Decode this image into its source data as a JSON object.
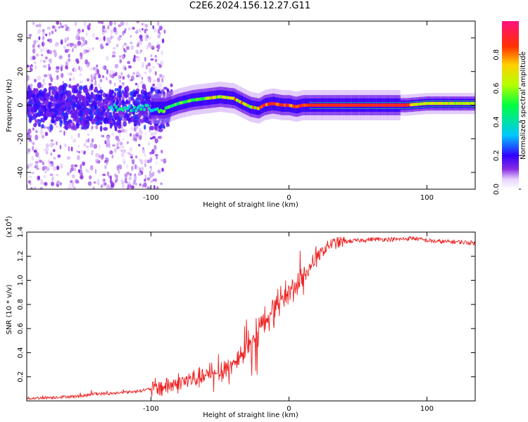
{
  "title": "C2E6.2024.156.12.27.G11",
  "chart_data": [
    {
      "type": "heatmap",
      "name": "spectrogram",
      "xlabel": "Height of straight line (km)",
      "ylabel": "Frequency (Hz)",
      "xlim": [
        -190,
        135
      ],
      "ylim": [
        -50,
        50
      ],
      "xticks": [
        -100,
        0,
        100
      ],
      "xtick_labels": [
        "-100",
        "0",
        "100"
      ],
      "yticks": [
        -40,
        -20,
        0,
        20,
        40
      ],
      "ytick_labels": [
        "-40",
        "-20",
        "0",
        "20",
        "40"
      ],
      "ridge": {
        "x": [
          -190,
          -150,
          -110,
          -100,
          -90,
          -80,
          -70,
          -60,
          -50,
          -40,
          -33,
          -28,
          -22,
          -18,
          -12,
          -5,
          0,
          5,
          10,
          20,
          40,
          60,
          85,
          100,
          120,
          135
        ],
        "y": [
          0,
          -1,
          -2,
          -2,
          -2,
          1,
          3,
          4,
          5,
          4,
          1,
          -1,
          -2,
          0,
          1,
          0,
          0,
          -1,
          0,
          0,
          0,
          0,
          0,
          1,
          1,
          1
        ]
      },
      "colorbar": {
        "label": "Normalized spectral amplitude",
        "range": [
          0,
          1
        ],
        "ticks": [
          0.0,
          0.2,
          0.4,
          0.6,
          0.8
        ],
        "tick_labels": [
          "0.0",
          "0.2",
          "0.4",
          "0.6",
          "0.8"
        ]
      }
    },
    {
      "type": "line",
      "name": "snr",
      "xlabel": "Height of straight line (km)",
      "ylabel": "SNR (10 * v/v)",
      "yscale_label": "(x10",
      "yscale_exp": "4",
      "yscale_close": ")",
      "xlim": [
        -190,
        135
      ],
      "ylim": [
        0,
        1.4
      ],
      "xticks": [
        -100,
        0,
        100
      ],
      "xtick_labels": [
        "-100",
        "0",
        "100"
      ],
      "yticks": [
        0.2,
        0.4,
        0.6,
        0.8,
        1.0,
        1.2,
        1.4
      ],
      "ytick_labels": [
        "0.2",
        "0.4",
        "0.6",
        "0.8",
        "1.0",
        "1.2",
        "1.4"
      ],
      "color": "#ee2222",
      "series": [
        {
          "name": "SNR",
          "x": [
            -190,
            -170,
            -150,
            -140,
            -130,
            -120,
            -110,
            -100,
            -90,
            -80,
            -70,
            -60,
            -50,
            -45,
            -40,
            -35,
            -30,
            -25,
            -20,
            -15,
            -10,
            -5,
            0,
            5,
            10,
            15,
            20,
            25,
            30,
            40,
            50,
            60,
            70,
            80,
            90,
            100,
            110,
            120,
            135
          ],
          "y": [
            0.02,
            0.03,
            0.04,
            0.06,
            0.06,
            0.07,
            0.08,
            0.1,
            0.12,
            0.15,
            0.18,
            0.2,
            0.24,
            0.28,
            0.3,
            0.38,
            0.45,
            0.55,
            0.62,
            0.7,
            0.78,
            0.85,
            0.9,
            0.95,
            1.02,
            1.1,
            1.18,
            1.25,
            1.3,
            1.32,
            1.33,
            1.34,
            1.34,
            1.34,
            1.35,
            1.33,
            1.32,
            1.32,
            1.31
          ]
        }
      ]
    }
  ]
}
